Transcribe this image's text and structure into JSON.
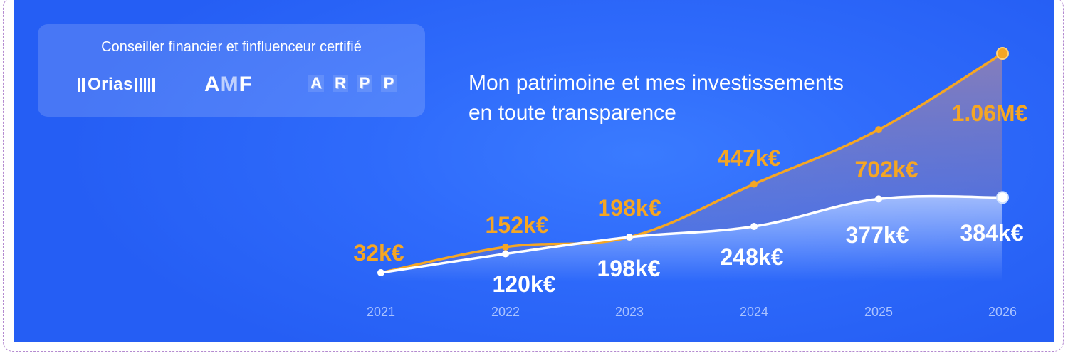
{
  "certification": {
    "title": "Conseiller financier et finfluenceur certifié",
    "logos": [
      {
        "name": "orias-logo",
        "text": "Orias"
      },
      {
        "name": "amf-logo",
        "text_a": "A",
        "text_m": "M",
        "text_f": "F"
      },
      {
        "name": "arpp-logo",
        "letters": [
          "A",
          "R",
          "P",
          "P"
        ]
      }
    ]
  },
  "headline": {
    "line1": "Mon patrimoine et mes investissements",
    "line2": "en toute transparence"
  },
  "colors": {
    "background": "#2a63f7",
    "orange": "#f5a623",
    "white": "#ffffff",
    "axis_text": "#a9c2ff"
  },
  "chart_data": {
    "type": "line",
    "x": [
      "2021",
      "2022",
      "2023",
      "2024",
      "2025",
      "2026"
    ],
    "series": [
      {
        "key": "orange",
        "values": [
          32,
          152,
          198,
          447,
          702,
          1060
        ],
        "labels": [
          "32k€",
          "152k€",
          "198k€",
          "447k€",
          "702k€",
          "1.06M€"
        ]
      },
      {
        "key": "white",
        "values": [
          32,
          120,
          198,
          248,
          377,
          384
        ],
        "labels": [
          "",
          "120k€",
          "198k€",
          "248k€",
          "377k€",
          "384k€"
        ]
      }
    ],
    "grid": false,
    "legend": "none"
  }
}
